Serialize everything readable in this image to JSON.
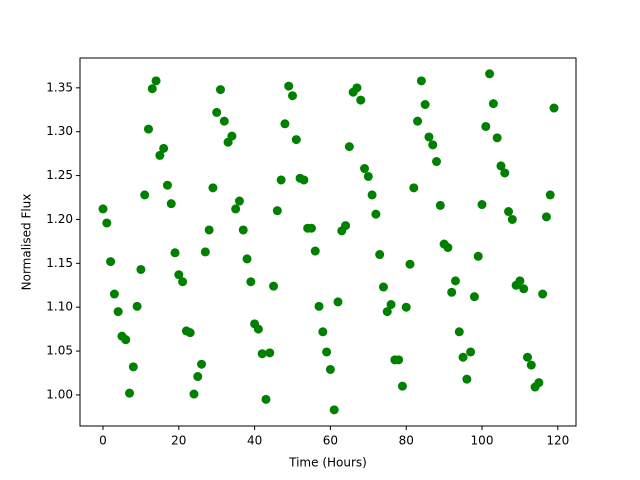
{
  "chart_data": {
    "type": "scatter",
    "x_label": "Time (Hours)",
    "y_label": "Normalised Flux",
    "color": "#008000",
    "x": [
      0,
      1,
      2,
      3,
      4,
      5,
      6,
      7,
      8,
      9,
      10,
      11,
      12,
      13,
      14,
      15,
      16,
      17,
      18,
      19,
      20,
      21,
      22,
      23,
      24,
      25,
      26,
      27,
      28,
      29,
      30,
      31,
      32,
      33,
      34,
      35,
      36,
      37,
      38,
      39,
      40,
      41,
      42,
      43,
      44,
      45,
      46,
      47,
      48,
      49,
      50,
      51,
      52,
      53,
      54,
      55,
      56,
      57,
      58,
      59,
      60,
      61,
      62,
      63,
      64,
      65,
      66,
      67,
      68,
      69,
      70,
      71,
      72,
      73,
      74,
      75,
      76,
      77,
      78,
      79,
      80,
      81,
      82,
      83,
      84,
      85,
      86,
      87,
      88,
      89,
      90,
      91,
      92,
      93,
      94,
      95,
      96,
      97,
      98,
      99,
      100,
      101,
      102,
      103,
      104,
      105,
      106,
      107,
      108,
      109,
      110,
      111,
      112,
      113,
      114,
      115,
      116,
      117,
      118,
      119
    ],
    "values": [
      1.212,
      1.196,
      1.152,
      1.115,
      1.095,
      1.067,
      1.063,
      1.002,
      1.032,
      1.101,
      1.143,
      1.228,
      1.303,
      1.349,
      1.358,
      1.273,
      1.281,
      1.239,
      1.218,
      1.162,
      1.137,
      1.129,
      1.073,
      1.071,
      1.001,
      1.021,
      1.035,
      1.163,
      1.188,
      1.236,
      1.322,
      1.348,
      1.312,
      1.288,
      1.295,
      1.212,
      1.221,
      1.188,
      1.155,
      1.129,
      1.081,
      1.075,
      1.047,
      0.995,
      1.048,
      1.124,
      1.21,
      1.245,
      1.309,
      1.352,
      1.341,
      1.291,
      1.247,
      1.245,
      1.19,
      1.19,
      1.164,
      1.101,
      1.072,
      1.049,
      1.029,
      0.983,
      1.106,
      1.187,
      1.193,
      1.283,
      1.345,
      1.35,
      1.336,
      1.258,
      1.249,
      1.228,
      1.206,
      1.16,
      1.123,
      1.095,
      1.103,
      1.04,
      1.04,
      1.01,
      1.1,
      1.149,
      1.236,
      1.312,
      1.358,
      1.331,
      1.294,
      1.285,
      1.266,
      1.216,
      1.172,
      1.168,
      1.117,
      1.13,
      1.072,
      1.043,
      1.018,
      1.049,
      1.112,
      1.158,
      1.217,
      1.306,
      1.366,
      1.332,
      1.293,
      1.261,
      1.253,
      1.209,
      1.2,
      1.125,
      1.13,
      1.121,
      1.043,
      1.034,
      1.009,
      1.014,
      1.115,
      1.203,
      1.228,
      1.327
    ],
    "xlim": [
      -6.07,
      124.8
    ],
    "ylim": [
      0.9646,
      1.384
    ],
    "xticks": [
      0,
      20,
      40,
      60,
      80,
      100,
      120
    ],
    "yticks": [
      {
        "value": 1.0,
        "label": "1.00"
      },
      {
        "value": 1.05,
        "label": "1.05"
      },
      {
        "value": 1.1,
        "label": "1.10"
      },
      {
        "value": 1.15,
        "label": "1.15"
      },
      {
        "value": 1.2,
        "label": "1.20"
      },
      {
        "value": 1.25,
        "label": "1.25"
      },
      {
        "value": 1.3,
        "label": "1.30"
      },
      {
        "value": 1.35,
        "label": "1.35"
      }
    ]
  }
}
